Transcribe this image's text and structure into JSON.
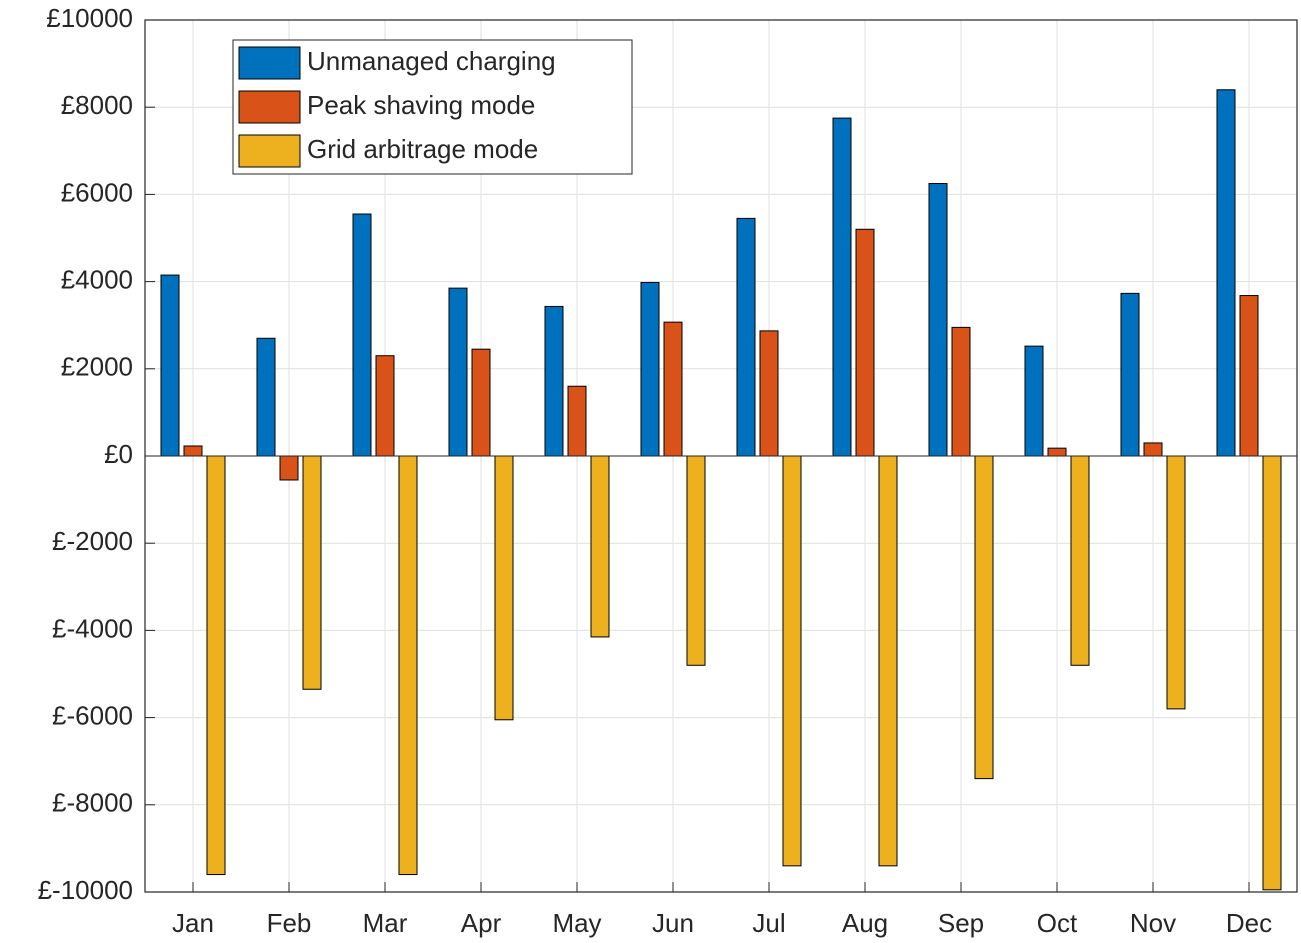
{
  "chart_data": {
    "type": "bar",
    "categories": [
      "Jan",
      "Feb",
      "Mar",
      "Apr",
      "May",
      "Jun",
      "Jul",
      "Aug",
      "Sep",
      "Oct",
      "Nov",
      "Dec"
    ],
    "series": [
      {
        "name": "Unmanaged charging",
        "color": "#0072BD",
        "values": [
          4150,
          2700,
          5550,
          3850,
          3430,
          3980,
          5450,
          7750,
          6250,
          2520,
          3730,
          8400
        ]
      },
      {
        "name": "Peak shaving mode",
        "color": "#D95319",
        "values": [
          230,
          -550,
          2300,
          2450,
          1600,
          3070,
          2870,
          5200,
          2950,
          180,
          300,
          3680
        ]
      },
      {
        "name": "Grid arbitrage mode",
        "color": "#EDB120",
        "values": [
          -9600,
          -5350,
          -9600,
          -6050,
          -4150,
          -4800,
          -9400,
          -9400,
          -7400,
          -4800,
          -5800,
          -9950
        ]
      }
    ],
    "ylim": [
      -10000,
      10000
    ],
    "yticks": [
      {
        "value": -10000,
        "label": "£-10000"
      },
      {
        "value": -8000,
        "label": "£-8000"
      },
      {
        "value": -6000,
        "label": "£-6000"
      },
      {
        "value": -4000,
        "label": "£-4000"
      },
      {
        "value": -2000,
        "label": "£-2000"
      },
      {
        "value": 0,
        "label": "£0"
      },
      {
        "value": 2000,
        "label": "£2000"
      },
      {
        "value": 4000,
        "label": "£4000"
      },
      {
        "value": 6000,
        "label": "£6000"
      },
      {
        "value": 8000,
        "label": "£8000"
      },
      {
        "value": 10000,
        "label": "£10000"
      }
    ],
    "grid": true,
    "legend": "top-left"
  }
}
